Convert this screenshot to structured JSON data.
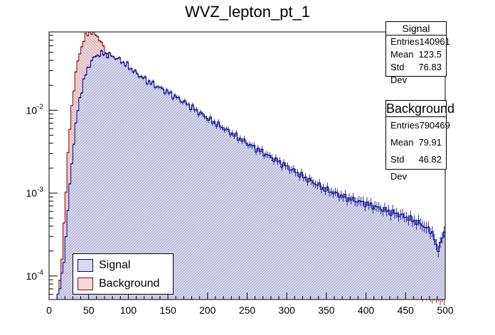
{
  "chart_data": {
    "type": "histogram",
    "title": "WVZ_lepton_pt_1",
    "xlabel": "",
    "ylabel": "",
    "xlim": [
      0,
      500
    ],
    "ylim": [
      5.2e-05,
      0.088
    ],
    "yscale": "log",
    "x_ticks": [
      "0",
      "50",
      "100",
      "150",
      "200",
      "250",
      "300",
      "350",
      "400",
      "450",
      "500"
    ],
    "y_ticks": [
      {
        "base": "10",
        "exp": "-4",
        "value": 0.0001
      },
      {
        "base": "10",
        "exp": "-3",
        "value": 0.001
      },
      {
        "base": "10",
        "exp": "-2",
        "value": 0.01
      }
    ],
    "series": [
      {
        "name": "Signal",
        "color": "#00008b",
        "fill": "#c9c9e4",
        "x": [
          10,
          15,
          20,
          25,
          30,
          35,
          40,
          45,
          50,
          55,
          60,
          65,
          70,
          80,
          90,
          100,
          110,
          120,
          130,
          150,
          175,
          200,
          225,
          250,
          275,
          300,
          325,
          350,
          375,
          400,
          425,
          450,
          470,
          485,
          490,
          495,
          500
        ],
        "values": [
          5.2e-05,
          8e-05,
          0.0002,
          0.0009,
          0.0032,
          0.0085,
          0.016,
          0.025,
          0.034,
          0.041,
          0.046,
          0.048,
          0.048,
          0.045,
          0.04,
          0.034,
          0.028,
          0.024,
          0.021,
          0.0165,
          0.0118,
          0.008,
          0.0057,
          0.004,
          0.0029,
          0.0021,
          0.0015,
          0.0011,
          0.00088,
          0.00075,
          0.00062,
          0.00052,
          0.00042,
          0.00033,
          0.00019,
          0.00028,
          0.00034
        ]
      },
      {
        "name": "Background",
        "color": "#8b0000",
        "fill": "#e8c8cc",
        "x": [
          10,
          15,
          20,
          25,
          30,
          35,
          40,
          45,
          50,
          55,
          60,
          65,
          70,
          80,
          90,
          100,
          110,
          120,
          130,
          150,
          175,
          200,
          225,
          250,
          275,
          300,
          325,
          350,
          375,
          400,
          425,
          450,
          475,
          500
        ],
        "values": [
          5e-05,
          0.0001,
          0.0007,
          0.0045,
          0.015,
          0.034,
          0.055,
          0.075,
          0.088,
          0.088,
          0.082,
          0.068,
          0.054,
          0.038,
          0.026,
          0.018,
          0.012,
          0.0085,
          0.0064,
          0.004,
          0.0025,
          0.0015,
          0.00095,
          0.00062,
          0.00042,
          0.00029,
          0.00021,
          0.00016,
          0.00012,
          0.0001,
          8e-05,
          7e-05,
          6e-05,
          5.2e-05
        ]
      }
    ],
    "legend": {
      "position": "bottom-left",
      "entries": [
        "Signal",
        "Background"
      ]
    },
    "stats": [
      {
        "title": "Signal",
        "rows": [
          {
            "label": "Entries",
            "value": "140961"
          },
          {
            "label": "Mean",
            "value": "123.5"
          },
          {
            "label": "Std Dev",
            "value": "76.83"
          }
        ]
      },
      {
        "title": "Background",
        "rows": [
          {
            "label": "Entries",
            "value": "790469"
          },
          {
            "label": "Mean",
            "value": "79.91"
          },
          {
            "label": "Std Dev",
            "value": "46.82"
          }
        ]
      }
    ]
  }
}
